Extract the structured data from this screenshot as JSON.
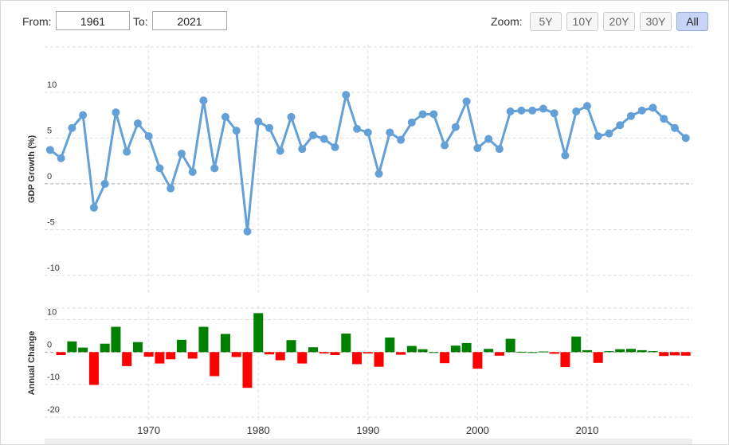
{
  "controls": {
    "from_label": "From:",
    "from_value": "1961",
    "to_label": "To:",
    "to_value": "2021",
    "zoom_label": "Zoom:",
    "zoom_buttons": [
      "5Y",
      "10Y",
      "20Y",
      "30Y",
      "All"
    ],
    "zoom_active_index": 4
  },
  "chart_data": [
    {
      "type": "line",
      "ylabel": "GDP Growth (%)",
      "color": "#64a0d8",
      "grid": true,
      "x": [
        1961,
        1962,
        1963,
        1964,
        1965,
        1966,
        1967,
        1968,
        1969,
        1970,
        1971,
        1972,
        1973,
        1974,
        1975,
        1976,
        1977,
        1978,
        1979,
        1980,
        1981,
        1982,
        1983,
        1984,
        1985,
        1986,
        1987,
        1988,
        1989,
        1990,
        1991,
        1992,
        1993,
        1994,
        1995,
        1996,
        1997,
        1998,
        1999,
        2000,
        2001,
        2002,
        2003,
        2004,
        2005,
        2006,
        2007,
        2008,
        2009,
        2010,
        2011,
        2012,
        2013,
        2014,
        2015,
        2016,
        2017,
        2018,
        2019
      ],
      "values": [
        3.7,
        2.8,
        6.1,
        7.5,
        -2.6,
        0.0,
        7.8,
        3.5,
        6.6,
        5.2,
        1.7,
        -0.5,
        3.3,
        1.3,
        9.1,
        1.7,
        7.3,
        5.8,
        -5.2,
        6.8,
        6.1,
        3.6,
        7.3,
        3.8,
        5.3,
        4.9,
        4.0,
        9.7,
        6.0,
        5.6,
        1.1,
        5.6,
        4.8,
        6.7,
        7.6,
        7.6,
        4.2,
        6.2,
        9.0,
        3.9,
        4.9,
        3.8,
        7.9,
        8.0,
        8.0,
        8.2,
        7.7,
        3.1,
        7.9,
        8.5,
        5.2,
        5.5,
        6.4,
        7.4,
        8.0,
        8.3,
        7.1,
        6.1,
        5.0
      ],
      "xlim": [
        1960.5,
        2019.6
      ],
      "xticks": [
        1970,
        1980,
        1990,
        2000,
        2010
      ],
      "ylim": [
        -12,
        15.2
      ],
      "yticks": [
        -10,
        -5,
        0,
        5,
        10
      ]
    },
    {
      "type": "bar",
      "ylabel": "Annual Change",
      "pos_color": "#008000",
      "neg_color": "#ff0000",
      "grid": true,
      "x": [
        1962,
        1963,
        1964,
        1965,
        1966,
        1967,
        1968,
        1969,
        1970,
        1971,
        1972,
        1973,
        1974,
        1975,
        1976,
        1977,
        1978,
        1979,
        1980,
        1981,
        1982,
        1983,
        1984,
        1985,
        1986,
        1987,
        1988,
        1989,
        1990,
        1991,
        1992,
        1993,
        1994,
        1995,
        1996,
        1997,
        1998,
        1999,
        2000,
        2001,
        2002,
        2003,
        2004,
        2005,
        2006,
        2007,
        2008,
        2009,
        2010,
        2011,
        2012,
        2013,
        2014,
        2015,
        2016,
        2017,
        2018,
        2019
      ],
      "values": [
        -0.9,
        3.3,
        1.4,
        -10.1,
        2.6,
        7.8,
        -4.3,
        3.1,
        -1.4,
        -3.5,
        -2.2,
        3.8,
        -2.0,
        7.8,
        -7.4,
        5.6,
        -1.5,
        -11.0,
        12.0,
        -0.7,
        -2.5,
        3.7,
        -3.5,
        1.5,
        -0.4,
        -0.9,
        5.7,
        -3.7,
        -0.4,
        -4.5,
        4.5,
        -0.8,
        1.9,
        0.9,
        0.0,
        -3.4,
        2.0,
        2.8,
        -5.1,
        1.0,
        -1.1,
        4.1,
        0.1,
        0.0,
        0.2,
        -0.5,
        -4.6,
        4.8,
        0.6,
        -3.3,
        0.3,
        0.9,
        1.0,
        0.6,
        0.3,
        -1.2,
        -1.0,
        -1.1
      ],
      "xlim": [
        1960.5,
        2019.6
      ],
      "xticks": [
        1970,
        1980,
        1990,
        2000,
        2010
      ],
      "ylim": [
        -21,
        14.3
      ],
      "yticks": [
        -20,
        -10,
        0,
        10
      ]
    }
  ]
}
